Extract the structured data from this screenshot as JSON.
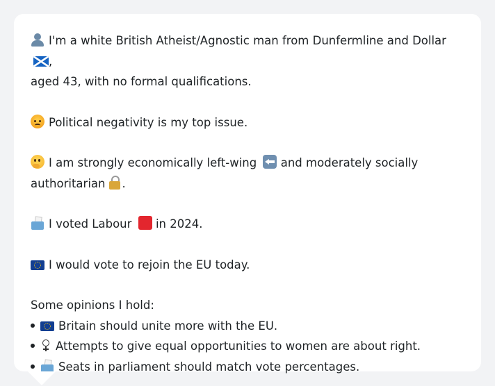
{
  "profile": {
    "line1_a": "I'm a white British Atheist/Agnostic man from Dunfermline and Dollar",
    "line1_b": ",",
    "line2": "aged 43, with no formal qualifications.",
    "top_issue": "Political negativity is my top issue.",
    "econ_a": "I am strongly economically left-wing",
    "econ_b": "and moderately socially",
    "econ_c": "authoritarian",
    "econ_d": ".",
    "vote_a": "I voted Labour",
    "vote_b": "in 2024.",
    "eu": "I would vote to rejoin the EU today."
  },
  "opinions": {
    "heading": "Some opinions I hold:",
    "items": [
      {
        "icon": "eu-flag-icon",
        "text": "Britain should unite more with the EU."
      },
      {
        "icon": "female-sign-icon",
        "text": "Attempts to give equal opportunities to women are about right."
      },
      {
        "icon": "ballot-box-icon",
        "text": "Seats in parliament should match vote percentages."
      }
    ]
  },
  "colors": {
    "background": "#f2f3f5",
    "card": "#ffffff",
    "text": "#1f2326",
    "labour_red": "#e3262e",
    "eu_blue": "#123e91"
  }
}
